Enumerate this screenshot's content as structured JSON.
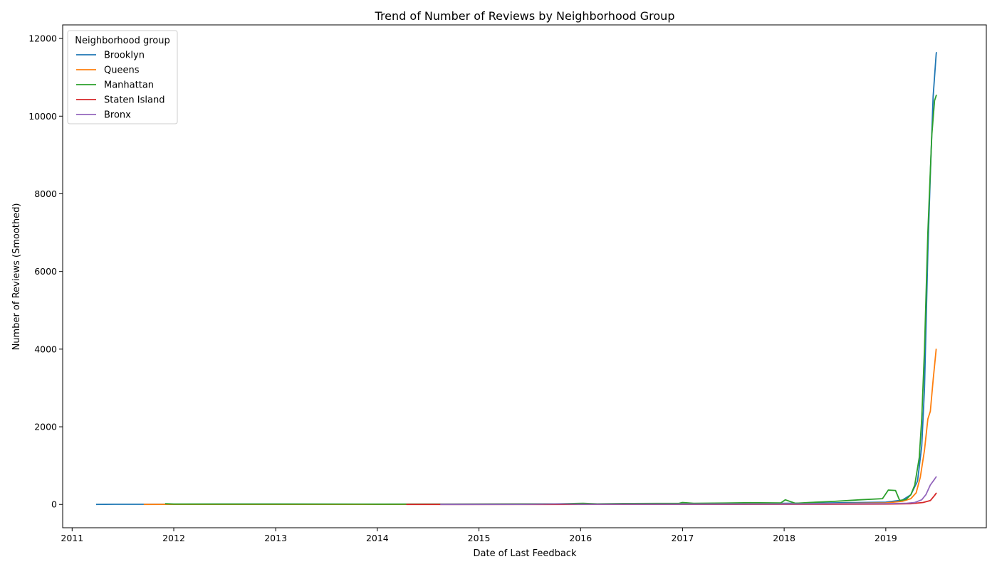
{
  "chart_data": {
    "type": "line",
    "title": "Trend of Number of Reviews by Neighborhood Group",
    "xlabel": "Date of Last Feedback",
    "ylabel": "Number of Reviews (Smoothed)",
    "x_ticks": [
      "2011",
      "2012",
      "2013",
      "2014",
      "2015",
      "2016",
      "2017",
      "2018",
      "2019"
    ],
    "y_ticks": [
      "0",
      "2000",
      "4000",
      "6000",
      "8000",
      "10000",
      "12000"
    ],
    "xlim": [
      "2010-11-28",
      "2019-12-28"
    ],
    "ylim": [
      -600,
      12350
    ],
    "grid": false,
    "legend": {
      "title": "Neighborhood group",
      "placement": "top-left"
    },
    "series": [
      {
        "name": "Brooklyn",
        "color": "#1f77b4",
        "points": [
          [
            "2011-03-28",
            0
          ],
          [
            "2011-06-01",
            5
          ],
          [
            "2011-10-01",
            5
          ],
          [
            "2012-06-01",
            8
          ],
          [
            "2013-01-01",
            8
          ],
          [
            "2014-01-01",
            6
          ],
          [
            "2015-01-01",
            8
          ],
          [
            "2015-10-01",
            12
          ],
          [
            "2016-06-01",
            15
          ],
          [
            "2017-01-01",
            20
          ],
          [
            "2017-06-01",
            25
          ],
          [
            "2018-01-01",
            30
          ],
          [
            "2018-06-01",
            40
          ],
          [
            "2019-01-01",
            60
          ],
          [
            "2019-03-01",
            110
          ],
          [
            "2019-04-01",
            250
          ],
          [
            "2019-04-25",
            600
          ],
          [
            "2019-05-10",
            1500
          ],
          [
            "2019-05-20",
            3000
          ],
          [
            "2019-06-01",
            6500
          ],
          [
            "2019-06-10",
            8500
          ],
          [
            "2019-06-20",
            10500
          ],
          [
            "2019-07-01",
            11600
          ],
          [
            "2019-07-02",
            11650
          ]
        ]
      },
      {
        "name": "Queens",
        "color": "#ff7f0e",
        "points": [
          [
            "2011-09-15",
            0
          ],
          [
            "2012-06-01",
            3
          ],
          [
            "2013-06-01",
            3
          ],
          [
            "2014-06-01",
            3
          ],
          [
            "2015-06-01",
            5
          ],
          [
            "2016-06-01",
            8
          ],
          [
            "2017-06-01",
            12
          ],
          [
            "2018-06-01",
            20
          ],
          [
            "2019-01-01",
            40
          ],
          [
            "2019-03-01",
            80
          ],
          [
            "2019-04-01",
            150
          ],
          [
            "2019-04-20",
            300
          ],
          [
            "2019-05-05",
            700
          ],
          [
            "2019-05-20",
            1400
          ],
          [
            "2019-06-01",
            2200
          ],
          [
            "2019-06-10",
            2400
          ],
          [
            "2019-06-20",
            3200
          ],
          [
            "2019-07-01",
            4000
          ],
          [
            "2019-07-02",
            4000
          ]
        ]
      },
      {
        "name": "Manhattan",
        "color": "#2ca02c",
        "points": [
          [
            "2011-12-01",
            20
          ],
          [
            "2012-01-01",
            10
          ],
          [
            "2013-01-01",
            10
          ],
          [
            "2014-01-01",
            8
          ],
          [
            "2015-01-01",
            10
          ],
          [
            "2015-10-01",
            15
          ],
          [
            "2016-01-10",
            30
          ],
          [
            "2016-03-01",
            15
          ],
          [
            "2016-06-01",
            25
          ],
          [
            "2016-12-20",
            30
          ],
          [
            "2017-01-01",
            50
          ],
          [
            "2017-02-10",
            30
          ],
          [
            "2017-06-01",
            35
          ],
          [
            "2017-09-01",
            45
          ],
          [
            "2017-12-20",
            40
          ],
          [
            "2018-01-05",
            120
          ],
          [
            "2018-02-10",
            30
          ],
          [
            "2018-04-01",
            50
          ],
          [
            "2018-07-01",
            80
          ],
          [
            "2018-10-01",
            120
          ],
          [
            "2018-12-20",
            150
          ],
          [
            "2019-01-10",
            370
          ],
          [
            "2019-02-05",
            360
          ],
          [
            "2019-02-20",
            100
          ],
          [
            "2019-03-15",
            130
          ],
          [
            "2019-04-01",
            250
          ],
          [
            "2019-04-15",
            500
          ],
          [
            "2019-05-01",
            1200
          ],
          [
            "2019-05-10",
            2200
          ],
          [
            "2019-05-20",
            4000
          ],
          [
            "2019-06-01",
            7000
          ],
          [
            "2019-06-15",
            9500
          ],
          [
            "2019-06-25",
            10400
          ],
          [
            "2019-07-02",
            10550
          ]
        ]
      },
      {
        "name": "Staten Island",
        "color": "#d62728",
        "points": [
          [
            "2014-04-15",
            0
          ],
          [
            "2014-08-15",
            0
          ],
          [
            "2015-06-01",
            0
          ],
          [
            "2016-06-01",
            2
          ],
          [
            "2017-06-01",
            3
          ],
          [
            "2018-06-01",
            5
          ],
          [
            "2019-01-01",
            10
          ],
          [
            "2019-04-01",
            20
          ],
          [
            "2019-05-15",
            50
          ],
          [
            "2019-06-10",
            100
          ],
          [
            "2019-06-25",
            230
          ],
          [
            "2019-07-02",
            300
          ]
        ]
      },
      {
        "name": "Bronx",
        "color": "#9467bd",
        "points": [
          [
            "2014-08-15",
            0
          ],
          [
            "2015-06-01",
            3
          ],
          [
            "2015-10-20",
            15
          ],
          [
            "2016-01-01",
            5
          ],
          [
            "2016-06-01",
            8
          ],
          [
            "2017-01-01",
            8
          ],
          [
            "2017-06-01",
            10
          ],
          [
            "2018-01-01",
            12
          ],
          [
            "2018-06-01",
            15
          ],
          [
            "2019-01-01",
            20
          ],
          [
            "2019-03-15",
            30
          ],
          [
            "2019-04-15",
            50
          ],
          [
            "2019-05-10",
            120
          ],
          [
            "2019-05-25",
            250
          ],
          [
            "2019-06-10",
            500
          ],
          [
            "2019-06-25",
            650
          ],
          [
            "2019-07-02",
            720
          ]
        ]
      }
    ]
  }
}
